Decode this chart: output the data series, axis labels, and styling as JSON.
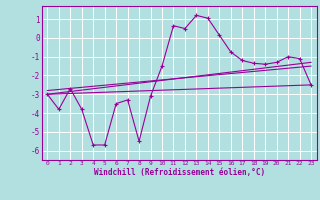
{
  "xlabel": "Windchill (Refroidissement éolien,°C)",
  "background_color": "#b2e0e0",
  "grid_color": "#ffffff",
  "line_color": "#990099",
  "xlim": [
    -0.5,
    23.5
  ],
  "ylim": [
    -6.5,
    1.7
  ],
  "yticks": [
    1,
    0,
    -1,
    -2,
    -3,
    -4,
    -5,
    -6
  ],
  "xticks": [
    0,
    1,
    2,
    3,
    4,
    5,
    6,
    7,
    8,
    9,
    10,
    11,
    12,
    13,
    14,
    15,
    16,
    17,
    18,
    19,
    20,
    21,
    22,
    23
  ],
  "main_x": [
    0,
    1,
    2,
    3,
    4,
    5,
    6,
    7,
    8,
    9,
    10,
    11,
    12,
    13,
    14,
    15,
    16,
    17,
    18,
    19,
    20,
    21,
    22,
    23
  ],
  "main_y": [
    -3.0,
    -3.8,
    -2.7,
    -3.8,
    -5.7,
    -5.7,
    -3.5,
    -3.3,
    -5.5,
    -3.1,
    -1.5,
    0.65,
    0.5,
    1.2,
    1.05,
    0.15,
    -0.75,
    -1.2,
    -1.35,
    -1.4,
    -1.3,
    -1.0,
    -1.1,
    -2.5
  ],
  "line1_x": [
    0,
    23
  ],
  "line1_y": [
    -3.0,
    -1.3
  ],
  "line2_x": [
    0,
    23
  ],
  "line2_y": [
    -2.8,
    -1.5
  ],
  "line3_x": [
    0,
    23
  ],
  "line3_y": [
    -3.0,
    -2.5
  ]
}
